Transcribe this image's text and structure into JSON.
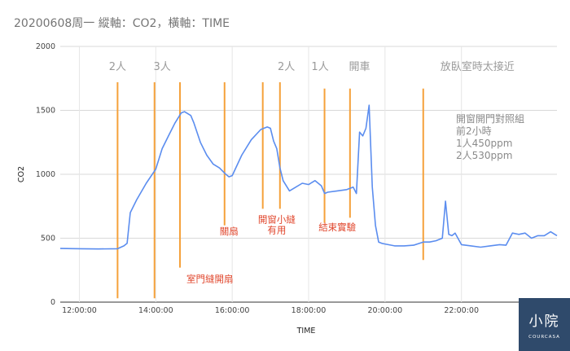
{
  "chart_data": {
    "type": "line",
    "title": "20200608周一  縱軸：CO2，橫軸：TIME",
    "xlabel": "TIME",
    "ylabel": "CO2",
    "ylim": [
      0,
      2000
    ],
    "yticks": [
      0,
      500,
      1000,
      1500,
      2000
    ],
    "xlim": [
      "11:30",
      "24:30"
    ],
    "xticks": [
      "12:00:00",
      "14:00:00",
      "16:00:00",
      "18:00:00",
      "20:00:00",
      "22:00:00"
    ],
    "grid": true,
    "series": [
      {
        "color": "#5b8def",
        "x": [
          "11:30",
          "12:00",
          "12:30",
          "13:00",
          "13:10",
          "13:15",
          "13:20",
          "13:30",
          "13:45",
          "14:00",
          "14:10",
          "14:20",
          "14:30",
          "14:40",
          "14:45",
          "14:55",
          "15:00",
          "15:10",
          "15:20",
          "15:30",
          "15:40",
          "15:50",
          "15:55",
          "16:00",
          "16:15",
          "16:30",
          "16:45",
          "16:55",
          "17:00",
          "17:05",
          "17:10",
          "17:15",
          "17:20",
          "17:30",
          "17:40",
          "17:50",
          "18:00",
          "18:10",
          "18:20",
          "18:25",
          "18:30",
          "18:45",
          "19:00",
          "19:10",
          "19:15",
          "19:20",
          "19:25",
          "19:30",
          "19:35",
          "19:40",
          "19:45",
          "19:50",
          "19:55",
          "20:00",
          "20:15",
          "20:30",
          "20:45",
          "21:00",
          "21:10",
          "21:20",
          "21:30",
          "21:35",
          "21:40",
          "21:45",
          "21:50",
          "22:00",
          "22:15",
          "22:30",
          "22:45",
          "23:00",
          "23:10",
          "23:20",
          "23:30",
          "23:40",
          "23:50",
          "24:00",
          "24:10",
          "24:20",
          "24:30"
        ],
        "y": [
          420,
          418,
          416,
          418,
          440,
          460,
          700,
          800,
          930,
          1040,
          1200,
          1300,
          1400,
          1480,
          1490,
          1460,
          1400,
          1250,
          1150,
          1080,
          1050,
          1000,
          980,
          990,
          1150,
          1270,
          1350,
          1370,
          1360,
          1260,
          1200,
          1050,
          950,
          870,
          900,
          930,
          920,
          950,
          910,
          850,
          860,
          870,
          880,
          900,
          850,
          1330,
          1300,
          1360,
          1540,
          900,
          600,
          470,
          460,
          455,
          440,
          440,
          445,
          470,
          470,
          480,
          500,
          790,
          530,
          520,
          540,
          450,
          440,
          430,
          440,
          450,
          445,
          540,
          530,
          540,
          500,
          520,
          520,
          550,
          520
        ]
      }
    ],
    "vertical_markers": [
      {
        "x": "13:00",
        "color": "#f5a13a",
        "y_top": 1720,
        "y_bottom": 30
      },
      {
        "x": "13:58",
        "color": "#f5a13a",
        "y_top": 1720,
        "y_bottom": 30
      },
      {
        "x": "14:38",
        "color": "#f5a13a",
        "y_top": 1720,
        "y_bottom": 270
      },
      {
        "x": "15:48",
        "color": "#f5a13a",
        "y_top": 1720,
        "y_bottom": 600
      },
      {
        "x": "16:48",
        "color": "#f5a13a",
        "y_top": 1720,
        "y_bottom": 730
      },
      {
        "x": "17:15",
        "color": "#f5a13a",
        "y_top": 1720,
        "y_bottom": 730
      },
      {
        "x": "18:25",
        "color": "#f5a13a",
        "y_top": 1670,
        "y_bottom": 620
      },
      {
        "x": "19:05",
        "color": "#f5a13a",
        "y_top": 1670,
        "y_bottom": 660
      },
      {
        "x": "21:00",
        "color": "#f5a13a",
        "y_top": 1670,
        "y_bottom": 330
      }
    ],
    "annotations": {
      "top": [
        {
          "text": "2人",
          "x": "13:00"
        },
        {
          "text": "3人",
          "x": "14:10"
        },
        {
          "text": "2人",
          "x": "17:25"
        },
        {
          "text": "1人",
          "x": "18:18"
        },
        {
          "text": "開車",
          "x": "19:20"
        },
        {
          "text": "放臥室時太接近",
          "x": "22:25"
        }
      ],
      "note": [
        "開窗開門對照組",
        "前2小時",
        "1人450ppm",
        "2人530ppm"
      ],
      "events": [
        {
          "lines": [
            "室門縫開扇"
          ],
          "x": "15:25",
          "y": 155
        },
        {
          "lines": [
            "關扇"
          ],
          "x": "15:55",
          "y": 530
        },
        {
          "lines": [
            "開窗小縫",
            "有用"
          ],
          "x": "17:10",
          "y": 620
        },
        {
          "lines": [
            "結束實驗"
          ],
          "x": "18:45",
          "y": 560
        }
      ]
    }
  },
  "logo": {
    "mark": "小院",
    "sub": "COURCASA"
  }
}
